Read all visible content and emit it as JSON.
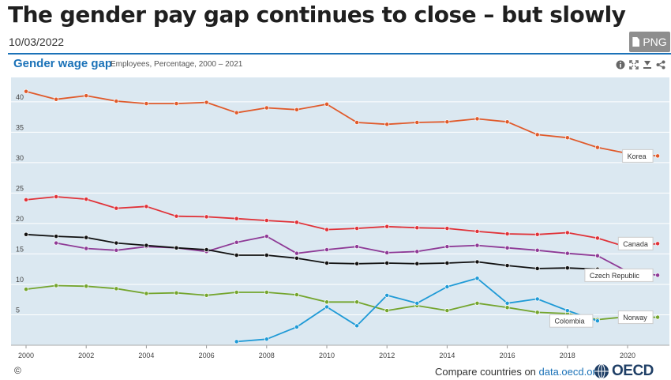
{
  "header": {
    "title": "The gender pay gap continues to close – but slowly",
    "date": "10/03/2022",
    "png_label": "PNG"
  },
  "section": {
    "title": "Gender wage gap",
    "subtitle": "Employees, Percentage, 2000 – 2021"
  },
  "footer": {
    "copyright": "©",
    "compare_text": "Compare countries on ",
    "compare_link": "data.oecd.org",
    "logo_text": "OECD"
  },
  "chart_data": {
    "type": "line",
    "title": "Gender wage gap",
    "xlim": [
      2000,
      2021
    ],
    "ylim": [
      0,
      44
    ],
    "xticks": [
      2000,
      2002,
      2004,
      2006,
      2008,
      2010,
      2012,
      2014,
      2016,
      2018,
      2020
    ],
    "yticks": [
      5,
      10,
      15,
      20,
      25,
      30,
      35,
      40
    ],
    "grid": true,
    "series": [
      {
        "name": "Korea",
        "color": "#e05a2b",
        "x": [
          2000,
          2001,
          2002,
          2003,
          2004,
          2005,
          2006,
          2007,
          2008,
          2009,
          2010,
          2011,
          2012,
          2013,
          2014,
          2015,
          2016,
          2017,
          2018,
          2019,
          2020,
          2021
        ],
        "values": [
          41.7,
          40.4,
          41.0,
          40.1,
          39.7,
          39.7,
          39.9,
          38.2,
          39.0,
          38.7,
          39.6,
          36.6,
          36.3,
          36.6,
          36.7,
          37.2,
          36.7,
          34.6,
          34.1,
          32.5,
          31.5,
          31.1
        ]
      },
      {
        "name": "Canada",
        "color": "#e03238",
        "x": [
          2000,
          2001,
          2002,
          2003,
          2004,
          2005,
          2006,
          2007,
          2008,
          2009,
          2010,
          2011,
          2012,
          2013,
          2014,
          2015,
          2016,
          2017,
          2018,
          2019,
          2020,
          2021
        ],
        "values": [
          23.9,
          24.4,
          24.0,
          22.5,
          22.8,
          21.2,
          21.1,
          20.8,
          20.5,
          20.2,
          19.0,
          19.2,
          19.5,
          19.3,
          19.2,
          18.7,
          18.3,
          18.2,
          18.5,
          17.6,
          16.1,
          16.7
        ]
      },
      {
        "name": "Czech Republic",
        "color": "#8e3a96",
        "x": [
          2001,
          2002,
          2003,
          2004,
          2005,
          2006,
          2007,
          2008,
          2009,
          2010,
          2011,
          2012,
          2013,
          2014,
          2015,
          2016,
          2017,
          2018,
          2019,
          2020,
          2021
        ],
        "values": [
          16.8,
          15.9,
          15.6,
          16.2,
          16.0,
          15.4,
          16.9,
          17.9,
          15.1,
          15.7,
          16.2,
          15.2,
          15.4,
          16.2,
          16.4,
          16.0,
          15.6,
          15.1,
          14.7,
          12.1,
          11.5
        ]
      },
      {
        "name": "",
        "color": "#111111",
        "x": [
          2000,
          2001,
          2002,
          2003,
          2004,
          2005,
          2006,
          2007,
          2008,
          2009,
          2010,
          2011,
          2012,
          2013,
          2014,
          2015,
          2016,
          2017,
          2018,
          2019,
          2020
        ],
        "values": [
          18.2,
          17.9,
          17.7,
          16.8,
          16.4,
          16.0,
          15.7,
          14.8,
          14.8,
          14.3,
          13.5,
          13.4,
          13.5,
          13.4,
          13.5,
          13.7,
          13.1,
          12.6,
          12.7,
          12.5,
          12.1
        ]
      },
      {
        "name": "Norway",
        "color": "#74a52e",
        "x": [
          2000,
          2001,
          2002,
          2003,
          2004,
          2005,
          2006,
          2007,
          2008,
          2009,
          2010,
          2011,
          2012,
          2013,
          2014,
          2015,
          2016,
          2017,
          2018,
          2019,
          2020,
          2021
        ],
        "values": [
          9.2,
          9.8,
          9.7,
          9.3,
          8.5,
          8.6,
          8.2,
          8.7,
          8.7,
          8.3,
          7.1,
          7.1,
          5.7,
          6.5,
          5.7,
          6.9,
          6.2,
          5.4,
          5.2,
          4.2,
          4.7,
          4.6
        ]
      },
      {
        "name": "Colombia",
        "color": "#1f9ad6",
        "x": [
          2007,
          2008,
          2009,
          2010,
          2011,
          2012,
          2013,
          2014,
          2015,
          2016,
          2017,
          2018,
          2019
        ],
        "values": [
          0.6,
          1.0,
          3.0,
          6.3,
          3.2,
          8.2,
          6.9,
          9.6,
          11.0,
          6.9,
          7.6,
          5.7,
          4.0
        ]
      }
    ]
  }
}
